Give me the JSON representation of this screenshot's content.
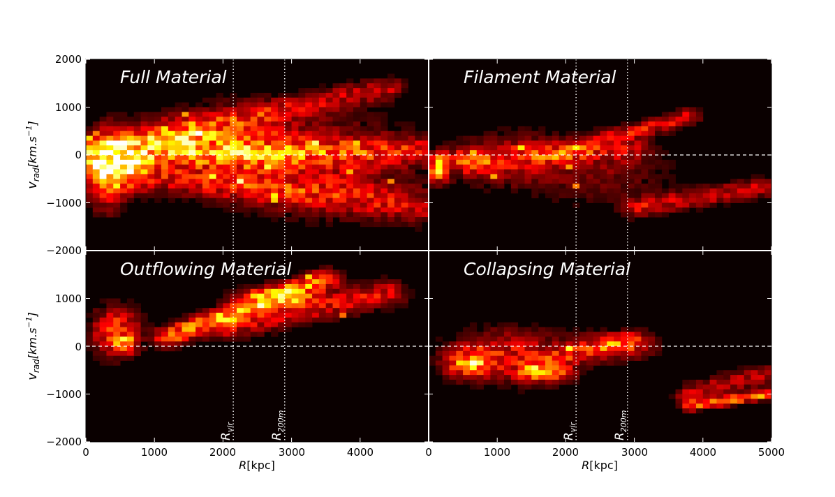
{
  "chart_data": {
    "type": "heatmap",
    "layout": "2x2 grid of 2D histograms (radial velocity vs radius)",
    "xlabel_prefix": "R",
    "xlabel_unit": "[kpc]",
    "ylabel_base": "v",
    "ylabel_sub": "rad",
    "ylabel_unit": "[km.s",
    "ylabel_exp": "−1",
    "ylabel_close": "]",
    "x_ticks_left": [
      "0",
      "1000",
      "2000",
      "3000",
      "4000"
    ],
    "x_ticks_right": [
      "0",
      "1000",
      "2000",
      "3000",
      "4000",
      "5000"
    ],
    "y_ticks_top": [
      "2000",
      "1000",
      "0",
      "−1000",
      "−2000"
    ],
    "y_ticks_bottom": [
      "1000",
      "0",
      "−1000",
      "−2000"
    ],
    "xlim": [
      0,
      5000
    ],
    "ylim": [
      -2000,
      2000
    ],
    "colormap": "hot",
    "zero_line": {
      "y": 0,
      "style": "dashed",
      "color": "#ffffff"
    },
    "reference_lines": [
      {
        "name": "R_vir",
        "label_base": "R",
        "label_sub": "vir",
        "x": 2150,
        "style": "dotted"
      },
      {
        "name": "R_200m",
        "label_base": "R",
        "label_sub": "200m",
        "x": 2900,
        "style": "dotted"
      }
    ],
    "panels": [
      {
        "id": "full",
        "title": "Full Material",
        "trends": [
          {
            "x0": 0,
            "y0": 100,
            "x1": 4400,
            "y1": 1400,
            "w": 220,
            "s": 0.35
          },
          {
            "x0": 0,
            "y0": -300,
            "x1": 5000,
            "y1": -1100,
            "w": 300,
            "s": 0.4
          },
          {
            "x0": 0,
            "y0": -50,
            "x1": 5000,
            "y1": 100,
            "w": 250,
            "s": 0.45
          }
        ],
        "blobs": [
          {
            "x": 600,
            "y": -200,
            "rx": 320,
            "ry": 450,
            "s": 1.0
          },
          {
            "x": 1300,
            "y": 300,
            "rx": 700,
            "ry": 400,
            "s": 0.75
          },
          {
            "x": 300,
            "y": -300,
            "rx": 250,
            "ry": 700,
            "s": 0.8
          },
          {
            "x": 2300,
            "y": 200,
            "rx": 800,
            "ry": 700,
            "s": 0.5
          },
          {
            "x": 3500,
            "y": -200,
            "rx": 1200,
            "ry": 900,
            "s": 0.35
          }
        ]
      },
      {
        "id": "filament",
        "title": "Filament Material",
        "trends": [
          {
            "x0": 1800,
            "y0": 0,
            "x1": 3800,
            "y1": 800,
            "w": 150,
            "s": 0.45
          },
          {
            "x0": 3000,
            "y0": -1100,
            "x1": 5000,
            "y1": -650,
            "w": 180,
            "s": 0.4
          },
          {
            "x0": 200,
            "y0": -100,
            "x1": 3000,
            "y1": 100,
            "w": 200,
            "s": 0.3
          }
        ],
        "blobs": [
          {
            "x": 150,
            "y": -300,
            "rx": 150,
            "ry": 250,
            "s": 0.9
          },
          {
            "x": 650,
            "y": -150,
            "rx": 200,
            "ry": 250,
            "s": 0.65
          },
          {
            "x": 1200,
            "y": -100,
            "rx": 700,
            "ry": 500,
            "s": 0.35
          },
          {
            "x": 2500,
            "y": -300,
            "rx": 900,
            "ry": 700,
            "s": 0.2
          }
        ]
      },
      {
        "id": "outflowing",
        "title": "Outflowing Material",
        "trends": [
          {
            "x0": 1200,
            "y0": 200,
            "x1": 3500,
            "y1": 1400,
            "w": 180,
            "s": 0.85
          },
          {
            "x0": 2000,
            "y0": 400,
            "x1": 4400,
            "y1": 1100,
            "w": 250,
            "s": 0.45
          }
        ],
        "blobs": [
          {
            "x": 450,
            "y": 300,
            "rx": 300,
            "ry": 450,
            "s": 0.75
          },
          {
            "x": 600,
            "y": 50,
            "rx": 130,
            "ry": 150,
            "s": 0.9
          },
          {
            "x": 2800,
            "y": 1050,
            "rx": 500,
            "ry": 200,
            "s": 0.7
          }
        ]
      },
      {
        "id": "collapsing",
        "title": "Collapsing Material",
        "trends": [
          {
            "x0": 3800,
            "y0": -1250,
            "x1": 5000,
            "y1": -1000,
            "w": 90,
            "s": 0.85
          },
          {
            "x0": 3800,
            "y0": -1000,
            "x1": 5000,
            "y1": -550,
            "w": 200,
            "s": 0.35
          },
          {
            "x0": 1500,
            "y0": -350,
            "x1": 3000,
            "y1": 100,
            "w": 200,
            "s": 0.4
          }
        ],
        "blobs": [
          {
            "x": 600,
            "y": -350,
            "rx": 300,
            "ry": 250,
            "s": 1.0
          },
          {
            "x": 1700,
            "y": -550,
            "rx": 350,
            "ry": 180,
            "s": 0.7
          },
          {
            "x": 1200,
            "y": -200,
            "rx": 800,
            "ry": 500,
            "s": 0.45
          },
          {
            "x": 2700,
            "y": 0,
            "rx": 500,
            "ry": 250,
            "s": 0.45
          }
        ]
      }
    ]
  }
}
